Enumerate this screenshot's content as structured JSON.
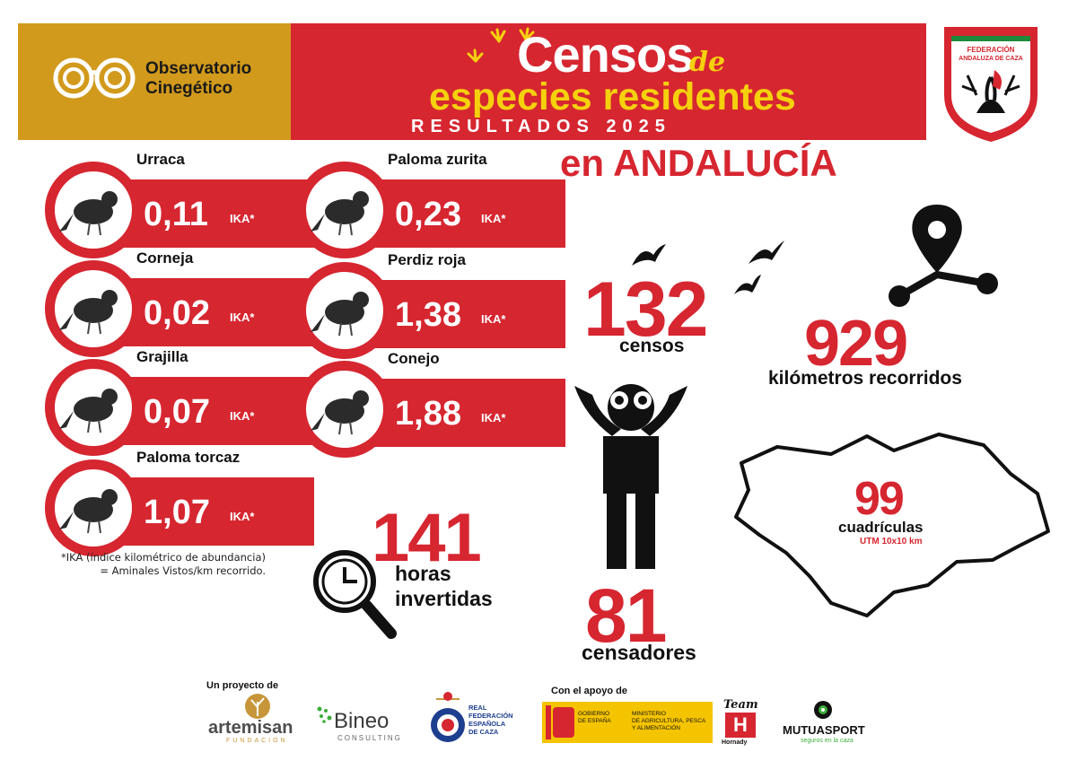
{
  "header": {
    "observatorio_line1": "Observatorio",
    "observatorio_line2": "Cinegético",
    "title": "Censos",
    "title_de": "de",
    "subtitle": "especies residentes",
    "results": "RESULTADOS 2025",
    "region": "en ANDALUCÍA",
    "badge_text_1": "FEDERACIÓN",
    "badge_text_2": "ANDALUZA DE CAZA"
  },
  "species": [
    {
      "name": "Urraca",
      "value": "0,11",
      "unit": "IKA*"
    },
    {
      "name": "Corneja",
      "value": "0,02",
      "unit": "IKA*"
    },
    {
      "name": "Grajilla",
      "value": "0,07",
      "unit": "IKA*"
    },
    {
      "name": "Paloma torcaz",
      "value": "1,07",
      "unit": "IKA*"
    },
    {
      "name": "Paloma zurita",
      "value": "0,23",
      "unit": "IKA*"
    },
    {
      "name": "Perdiz roja",
      "value": "1,38",
      "unit": "IKA*"
    },
    {
      "name": "Conejo",
      "value": "1,88",
      "unit": "IKA*"
    }
  ],
  "note": {
    "line1": "*IKA (índice kilométrico de abundancia)",
    "line2": "= Aminales Vistos/km recorrido."
  },
  "stats": {
    "censos_value": "132",
    "censos_label": "censos",
    "km_value": "929",
    "km_label": "kilómetros recorridos",
    "horas_value": "141",
    "horas_label_1": "horas",
    "horas_label_2": "invertidas",
    "censadores_value": "81",
    "censadores_label": "censadores",
    "cuadriculas_value": "99",
    "cuadriculas_label": "cuadrículas",
    "cuadriculas_sub": "UTM 10x10 km"
  },
  "footer": {
    "proyecto_label": "Un proyecto de",
    "apoyo_label": "Con el apoyo de",
    "artemisan": "artemisan",
    "artemisan_sub": "FUNDACIÓN",
    "bineo": "Bineo",
    "bineo_sub": "CONSULTING",
    "rfec_1": "REAL",
    "rfec_2": "FEDERACIÓN",
    "rfec_3": "ESPAÑOLA",
    "rfec_4": "DE CAZA",
    "gob_1": "GOBIERNO",
    "gob_2": "DE ESPAÑA",
    "min_1": "MINISTERIO",
    "min_2": "DE AGRICULTURA, PESCA",
    "min_3": "Y ALIMENTACIÓN",
    "hornady_team": "Team",
    "hornady": "Hornady",
    "mutua": "MUTUASPORT",
    "mutua_sub": "seguros en la caza"
  },
  "colors": {
    "red": "#d62630",
    "gold": "#d29a1c",
    "yellow": "#f5d10d"
  }
}
